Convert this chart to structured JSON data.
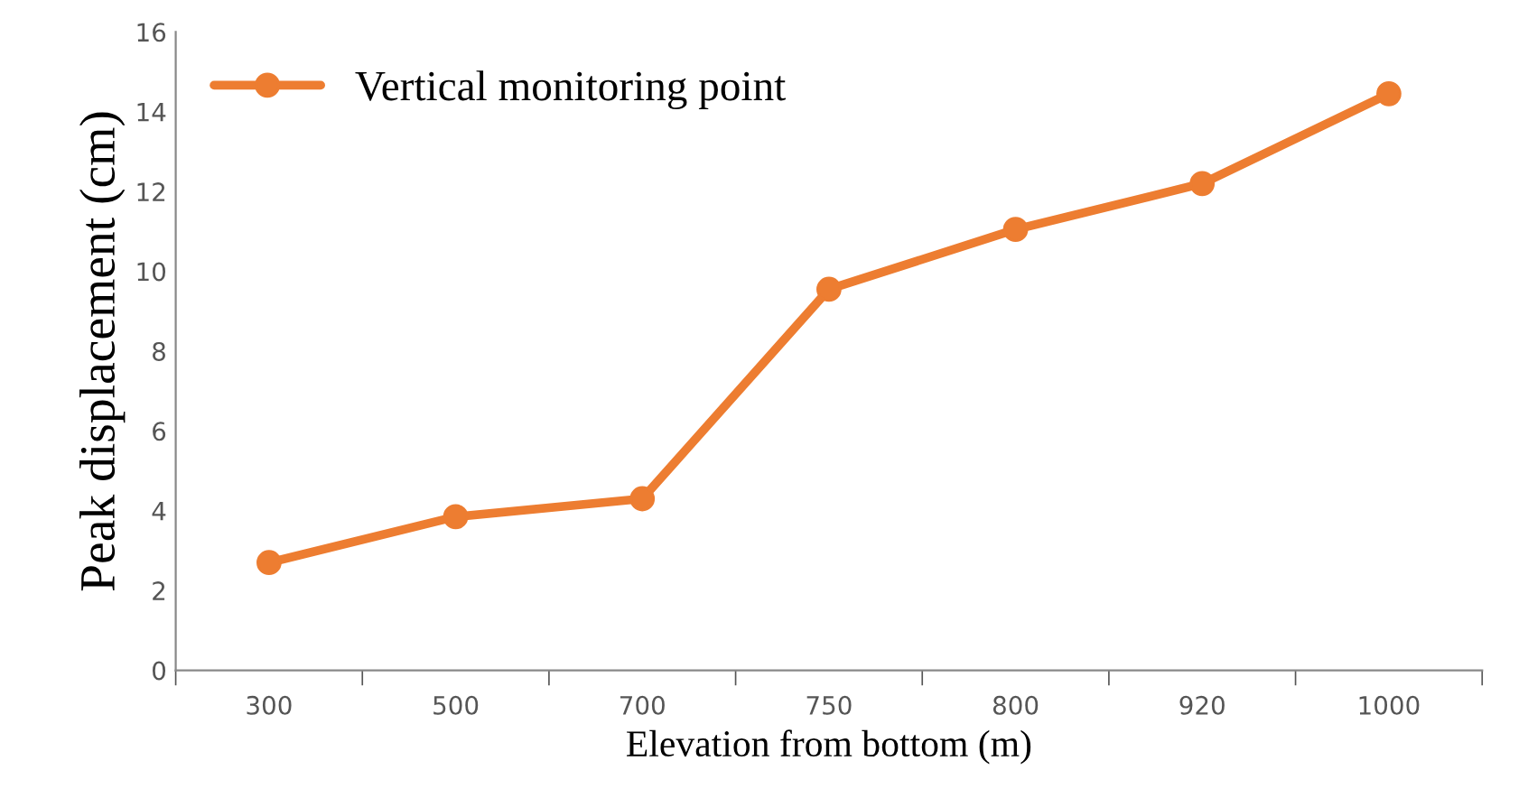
{
  "chart_data": {
    "type": "line",
    "xlabel": "Elevation from bottom (m)",
    "ylabel": "Peak displacement (cm)",
    "categories": [
      "300",
      "500",
      "700",
      "750",
      "800",
      "920",
      "1000"
    ],
    "series": [
      {
        "name": "Vertical monitoring point",
        "color": "#ed7d31",
        "values": [
          2.7,
          3.85,
          4.3,
          9.55,
          11.05,
          12.2,
          14.45
        ]
      }
    ],
    "ylim": [
      0,
      16
    ],
    "yticks": [
      0,
      2,
      4,
      6,
      8,
      10,
      12,
      14,
      16
    ],
    "grid": false,
    "legend": "top left",
    "marker": "circle",
    "line_style": "solid"
  }
}
